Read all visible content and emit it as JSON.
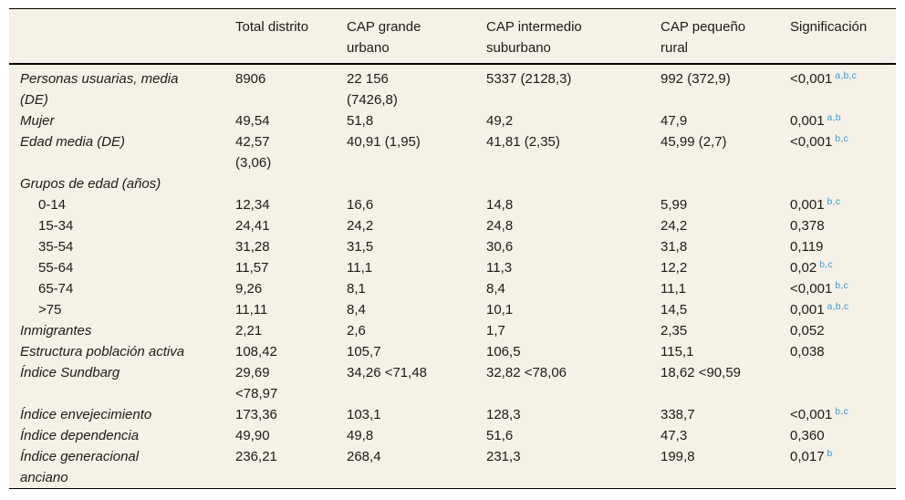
{
  "colors": {
    "table_bg": "#f5f1e6",
    "text": "#1b1b1a",
    "footnote_blue": "#3a9bd6",
    "rule": "#000000"
  },
  "table": {
    "columns": [
      "",
      "Total distrito",
      "CAP grande urbano",
      "CAP intermedio suburbano",
      "CAP pequeño rural",
      "Significación"
    ],
    "rows": [
      {
        "label": "Personas usuarias, media (DE)",
        "style": "main",
        "values": [
          "8906",
          "22 156 (7426,8)",
          "5337 (2128,3)",
          "992 (372,9)"
        ],
        "sig": "<0,001",
        "sig_sup": "a,b,c"
      },
      {
        "label": "Mujer",
        "style": "main",
        "values": [
          "49,54",
          "51,8",
          "49,2",
          "47,9"
        ],
        "sig": "0,001",
        "sig_sup": "a,b"
      },
      {
        "label": "Edad media (DE)",
        "style": "main",
        "values": [
          "42,57 (3,06)",
          "40,91 (1,95)",
          "41,81 (2,35)",
          "45,99 (2,7)"
        ],
        "sig": "<0,001",
        "sig_sup": "b,c"
      },
      {
        "label": "Grupos de edad (años)",
        "style": "main",
        "values": [
          "",
          "",
          "",
          ""
        ],
        "sig": "",
        "sig_sup": ""
      },
      {
        "label": "0-14",
        "style": "sub",
        "values": [
          "12,34",
          "16,6",
          "14,8",
          "5,99"
        ],
        "sig": "0,001",
        "sig_sup": "b,c"
      },
      {
        "label": "15-34",
        "style": "sub",
        "values": [
          "24,41",
          "24,2",
          "24,8",
          "24,2"
        ],
        "sig": "0,378",
        "sig_sup": ""
      },
      {
        "label": "35-54",
        "style": "sub",
        "values": [
          "31,28",
          "31,5",
          "30,6",
          "31,8"
        ],
        "sig": "0,119",
        "sig_sup": ""
      },
      {
        "label": "55-64",
        "style": "sub",
        "values": [
          "11,57",
          "11,1",
          "11,3",
          "12,2"
        ],
        "sig": "0,02",
        "sig_sup": "b,c"
      },
      {
        "label": "65-74",
        "style": "sub",
        "values": [
          "9,26",
          "8,1",
          "8,4",
          "11,1"
        ],
        "sig": "<0,001",
        "sig_sup": "b,c"
      },
      {
        "label": ">75",
        "style": "sub",
        "values": [
          "11,11",
          "8,4",
          "10,1",
          "14,5"
        ],
        "sig": "0,001",
        "sig_sup": "a,b,c"
      },
      {
        "label": "Inmigrantes",
        "style": "main",
        "values": [
          "2,21",
          "2,6",
          "1,7",
          "2,35"
        ],
        "sig": "0,052",
        "sig_sup": ""
      },
      {
        "label": "Estructura población activa",
        "style": "main",
        "values": [
          "108,42",
          "105,7",
          "106,5",
          "115,1"
        ],
        "sig": "0,038",
        "sig_sup": ""
      },
      {
        "label": "Índice Sundbarg",
        "style": "main",
        "values": [
          "29,69 <78,97",
          "34,26 <71,48",
          "32,82 <78,06",
          "18,62 <90,59"
        ],
        "sig": "",
        "sig_sup": ""
      },
      {
        "label": "Índice envejecimiento",
        "style": "main",
        "values": [
          "173,36",
          "103,1",
          "128,3",
          "338,7"
        ],
        "sig": "<0,001",
        "sig_sup": "b,c"
      },
      {
        "label": "Índice dependencia",
        "style": "main",
        "values": [
          "49,90",
          "49,8",
          "51,6",
          "47,3"
        ],
        "sig": "0,360",
        "sig_sup": ""
      },
      {
        "label": "Índice generacional anciano",
        "style": "main",
        "values": [
          "236,21",
          "268,4",
          "231,3",
          "199,8"
        ],
        "sig": "0,017",
        "sig_sup": "b"
      }
    ]
  }
}
